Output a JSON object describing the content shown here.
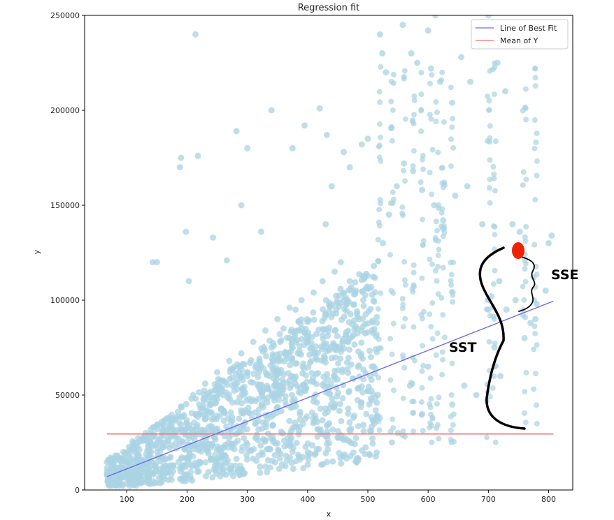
{
  "chart_data": {
    "type": "scatter",
    "title": "Regression fit",
    "xlabel": "x",
    "ylabel": "y",
    "xlim": [
      30,
      840
    ],
    "ylim": [
      0,
      250000
    ],
    "xticks": [
      100,
      200,
      300,
      400,
      500,
      600,
      700,
      800
    ],
    "yticks": [
      0,
      50000,
      100000,
      150000,
      200000,
      250000
    ],
    "grid": false,
    "legend_position": "top-right",
    "colors": {
      "scatter": "#a9d3e3",
      "fit_line": "#6c6cf0",
      "mean_line": "#f07070",
      "highlight": "#ee2200",
      "axis": "#000000"
    },
    "series": [
      {
        "name": "Line of Best Fit",
        "kind": "line",
        "x": [
          67,
          808
        ],
        "y": [
          7000,
          99500
        ]
      },
      {
        "name": "Mean of Y",
        "kind": "line",
        "x": [
          67,
          808
        ],
        "y": [
          29500,
          29500
        ]
      }
    ],
    "scatter_points": [
      [
        214,
        240000
      ],
      [
        282,
        189000
      ],
      [
        300,
        180000
      ],
      [
        218,
        176000
      ],
      [
        188,
        170000
      ],
      [
        190,
        175000
      ],
      [
        290,
        150000
      ],
      [
        323,
        136000
      ],
      [
        198,
        136000
      ],
      [
        243,
        133000
      ],
      [
        143,
        120000
      ],
      [
        150,
        120000
      ],
      [
        203,
        110000
      ],
      [
        266,
        121000
      ],
      [
        340,
        200000
      ],
      [
        375,
        180000
      ],
      [
        395,
        192000
      ],
      [
        420,
        201000
      ],
      [
        432,
        187000
      ],
      [
        460,
        178000
      ],
      [
        470,
        170000
      ],
      [
        490,
        182000
      ],
      [
        500,
        185000
      ],
      [
        520,
        240000
      ],
      [
        524,
        230000
      ],
      [
        530,
        220000
      ],
      [
        558,
        245000
      ],
      [
        572,
        230000
      ],
      [
        582,
        225000
      ],
      [
        600,
        242000
      ],
      [
        605,
        222000
      ],
      [
        612,
        250000
      ],
      [
        620,
        215000
      ],
      [
        640,
        204000
      ],
      [
        655,
        228000
      ],
      [
        670,
        215000
      ],
      [
        700,
        250000
      ],
      [
        715,
        225000
      ],
      [
        728,
        210000
      ],
      [
        740,
        140000
      ],
      [
        752,
        136000
      ],
      [
        760,
        124000
      ],
      [
        775,
        112000
      ],
      [
        800,
        130000
      ],
      [
        805,
        134000
      ],
      [
        760,
        80000
      ],
      [
        778,
        90000
      ],
      [
        640,
        45000
      ],
      [
        660,
        55000
      ],
      [
        680,
        50000
      ],
      [
        700,
        95000
      ],
      [
        710,
        75000
      ],
      [
        720,
        60000
      ],
      [
        600,
        65000
      ],
      [
        590,
        40000
      ],
      [
        570,
        55000
      ],
      [
        550,
        30000
      ],
      [
        540,
        25000
      ],
      [
        520,
        38000
      ],
      [
        505,
        70000
      ],
      [
        485,
        90000
      ],
      [
        470,
        110000
      ],
      [
        455,
        120000
      ],
      [
        440,
        160000
      ],
      [
        430,
        140000
      ],
      [
        380,
        95000
      ],
      [
        360,
        85000
      ],
      [
        340,
        75000
      ],
      [
        320,
        68000
      ],
      [
        300,
        60000
      ],
      [
        280,
        55000
      ],
      [
        260,
        50000
      ],
      [
        240,
        45000
      ],
      [
        220,
        40000
      ],
      [
        200,
        35000
      ],
      [
        180,
        30000
      ],
      [
        160,
        25000
      ],
      [
        140,
        20000
      ],
      [
        120,
        15000
      ],
      [
        100,
        10000
      ],
      [
        85,
        8000
      ],
      [
        70,
        5000
      ],
      [
        110,
        22000
      ],
      [
        130,
        28000
      ],
      [
        150,
        32000
      ],
      [
        170,
        38000
      ],
      [
        190,
        44000
      ],
      [
        210,
        50000
      ],
      [
        230,
        56000
      ],
      [
        250,
        62000
      ],
      [
        270,
        68000
      ],
      [
        290,
        72000
      ],
      [
        310,
        78000
      ],
      [
        330,
        84000
      ],
      [
        350,
        90000
      ],
      [
        370,
        96000
      ],
      [
        390,
        100000
      ],
      [
        410,
        104000
      ],
      [
        425,
        110000
      ],
      [
        445,
        115000
      ],
      [
        465,
        98000
      ],
      [
        480,
        105000
      ],
      [
        495,
        112000
      ],
      [
        510,
        118000
      ],
      [
        525,
        130000
      ],
      [
        535,
        145000
      ],
      [
        548,
        160000
      ],
      [
        560,
        172000
      ],
      [
        575,
        168000
      ],
      [
        590,
        158000
      ],
      [
        610,
        150000
      ],
      [
        625,
        142000
      ],
      [
        645,
        155000
      ],
      [
        665,
        160000
      ],
      [
        690,
        140000
      ],
      [
        705,
        102000
      ],
      [
        718,
        110000
      ],
      [
        730,
        95000
      ],
      [
        745,
        100000
      ],
      [
        770,
        88000
      ],
      [
        780,
        98000
      ],
      [
        795,
        105000
      ]
    ],
    "annotations": [
      {
        "text": "SSE"
      },
      {
        "text": "SST"
      }
    ]
  }
}
